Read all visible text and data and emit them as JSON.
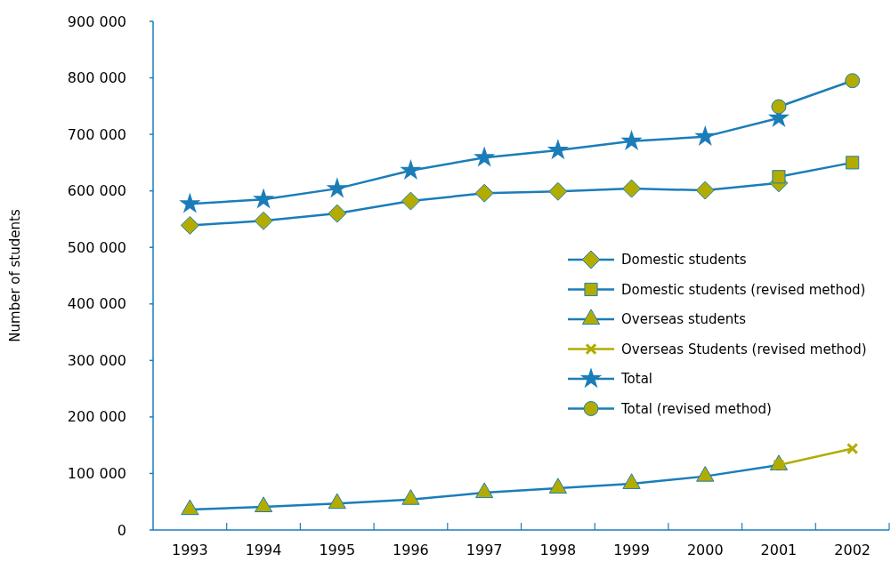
{
  "chart_data": {
    "type": "line",
    "ylabel": "Number of students",
    "categories": [
      "1993",
      "1994",
      "1995",
      "1996",
      "1997",
      "1998",
      "1999",
      "2000",
      "2001",
      "2002"
    ],
    "ylim": [
      0,
      900000
    ],
    "yticks": [
      0,
      {
        "value": 100000,
        "label": "100 000"
      },
      {
        "value": 200000,
        "label": "200 000"
      },
      {
        "value": 300000,
        "label": "300 000"
      },
      {
        "value": 400000,
        "label": "400 000"
      },
      {
        "value": 500000,
        "label": "500 000"
      },
      {
        "value": 600000,
        "label": "600 000"
      },
      {
        "value": 700000,
        "label": "700 000"
      },
      {
        "value": 800000,
        "label": "800 000"
      },
      {
        "value": 900000,
        "label": "900 000"
      }
    ],
    "grid": false,
    "legend": "right",
    "line_style": "solid",
    "series": [
      {
        "name": "Domestic students",
        "color": "#1b7db8",
        "marker": "diamond",
        "colors": [
          "#b3ac00",
          "#b3ac00",
          "#b3ac00",
          "#b3ac00",
          "#b3ac00",
          "#b3ac00",
          "#b3ac00",
          "#b3ac00",
          "#b3ac00",
          null
        ],
        "values": [
          539000,
          547000,
          560000,
          582000,
          596000,
          599000,
          604000,
          601000,
          614000,
          null
        ]
      },
      {
        "name": "Domestic students (revised method)",
        "color": "#1b7db8",
        "marker": "square",
        "colors": [
          null,
          null,
          null,
          null,
          null,
          null,
          null,
          null,
          "#b3ac00",
          "#b3ac00"
        ],
        "values": [
          null,
          null,
          null,
          null,
          null,
          null,
          null,
          null,
          625000,
          650000
        ]
      },
      {
        "name": "Overseas students",
        "color": "#1b7db8",
        "marker": "triangle",
        "colors": [
          "#b3ac00",
          "#b3ac00",
          "#b3ac00",
          "#b3ac00",
          "#b3ac00",
          "#b3ac00",
          "#b3ac00",
          "#b3ac00",
          "#b3ac00",
          null
        ],
        "values": [
          36000,
          41000,
          47000,
          54000,
          66000,
          74000,
          82000,
          95000,
          115000,
          null
        ]
      },
      {
        "name": "Overseas Students (revised method)",
        "color": "#b3ac00",
        "marker": "cross",
        "values": [
          null,
          null,
          null,
          null,
          null,
          null,
          null,
          null,
          115000,
          144000
        ]
      },
      {
        "name": "Total",
        "color": "#1b7db8",
        "marker": "star",
        "values": [
          577000,
          585000,
          604000,
          636000,
          659000,
          672000,
          688000,
          696000,
          729000,
          null
        ]
      },
      {
        "name": "Total (revised method)",
        "color": "#1b7db8",
        "marker": "circle",
        "colors": [
          null,
          null,
          null,
          null,
          null,
          null,
          null,
          null,
          "#b3ac00",
          "#b3ac00"
        ],
        "values": [
          null,
          null,
          null,
          null,
          null,
          null,
          null,
          null,
          749000,
          795000
        ]
      }
    ]
  }
}
